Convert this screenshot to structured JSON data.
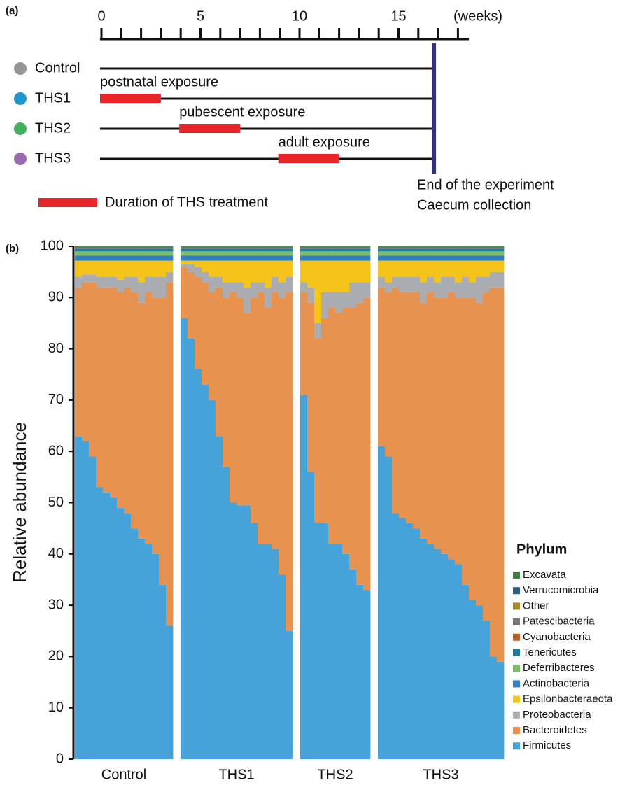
{
  "timeline": {
    "panel_label": "(a)",
    "unit": "(weeks)",
    "tick_labels": [
      "0",
      "5",
      "10",
      "15"
    ],
    "groups": [
      {
        "name": "Control",
        "color": "#939598"
      },
      {
        "name": "THS1",
        "color": "#1f95d0",
        "exposure": "postnatal exposure"
      },
      {
        "name": "THS2",
        "color": "#43b05c",
        "exposure": "pubescent exposure"
      },
      {
        "name": "THS3",
        "color": "#9b6bb0",
        "exposure": "adult exposure"
      }
    ],
    "legend": "Duration of THS treatment",
    "end_note": [
      "End of the experiment",
      "Caecum collection"
    ]
  },
  "chart_data": {
    "type": "stacked_bar",
    "panel_label": "(b)",
    "y_label": "Relative abundance",
    "legend_title": "Phylum",
    "groups": [
      "Control",
      "THS1",
      "THS2",
      "THS3"
    ],
    "ylim": [
      0,
      100
    ],
    "yticks": [
      0,
      10,
      20,
      30,
      40,
      50,
      60,
      70,
      80,
      90,
      100
    ],
    "series": [
      {
        "name": "Firmicutes",
        "color": "#45a3d9",
        "values": [
          [
            63,
            62,
            59,
            53,
            52,
            51,
            49,
            48,
            45,
            43,
            42,
            40,
            34,
            26
          ],
          [
            86,
            82,
            76,
            73,
            70,
            63,
            57,
            50,
            49.5,
            49.5,
            46,
            42,
            42,
            41,
            36,
            25
          ],
          [
            71,
            56,
            46,
            46,
            42,
            42,
            40,
            37,
            34,
            33
          ],
          [
            61,
            59,
            48,
            47,
            46,
            45,
            43,
            42,
            41,
            40,
            39,
            38,
            34,
            31,
            30,
            27,
            20,
            19
          ]
        ]
      },
      {
        "name": "Bacteroidetes",
        "color": "#e8924f",
        "values": [
          [
            29,
            31,
            34,
            39,
            40,
            41,
            42,
            44,
            46,
            46,
            49,
            50,
            56,
            67
          ],
          [
            10,
            13,
            18,
            20,
            21,
            29,
            33,
            41,
            40.5,
            37.5,
            44,
            49,
            46,
            50,
            54,
            66
          ],
          [
            20,
            33,
            36,
            40,
            46,
            45,
            48,
            51,
            55,
            57
          ],
          [
            31,
            32,
            44,
            44,
            45,
            46,
            46,
            49,
            49,
            50,
            52,
            52,
            56,
            59,
            59,
            64,
            72,
            73
          ]
        ]
      },
      {
        "name": "Proteobacteria",
        "color": "#a9acb0",
        "values": [
          [
            2,
            1.5,
            1.5,
            2,
            2,
            2,
            2.5,
            2,
            3,
            4,
            3,
            4,
            4,
            2
          ],
          [
            0.5,
            1.5,
            2,
            2,
            3,
            2,
            3,
            2,
            3,
            5,
            3,
            2,
            4,
            3,
            3,
            3
          ],
          [
            2,
            3,
            3,
            5,
            3,
            4,
            3,
            5,
            4,
            3
          ],
          [
            2,
            2,
            2,
            3,
            3,
            3,
            4,
            3,
            3,
            4,
            3,
            3,
            4,
            3,
            5,
            3,
            3,
            3
          ]
        ]
      },
      {
        "name": "Epsilonbacteraeota",
        "color": "#f5c419",
        "values": [
          [
            3.2,
            2.7,
            2.7,
            3.2,
            3.2,
            3.2,
            3.7,
            3.2,
            3.2,
            4.2,
            3.2,
            3.2,
            3.2,
            2.2
          ],
          [
            0.7,
            0.7,
            1.2,
            2.2,
            3.2,
            3.2,
            4.2,
            4.2,
            4.2,
            5.2,
            4.2,
            4.2,
            5.2,
            3.2,
            4.2,
            3.2
          ],
          [
            4.2,
            5.2,
            12.2,
            6.2,
            6.2,
            6.2,
            6.2,
            4.2,
            4.2,
            4.2
          ],
          [
            3.2,
            4.2,
            3.2,
            3.2,
            3.2,
            3.2,
            4.2,
            3.2,
            4.2,
            3.2,
            3.2,
            4.2,
            3.2,
            4.2,
            3.2,
            3.2,
            2.2,
            2.2
          ]
        ]
      },
      {
        "name": "Actinobacteria",
        "color": "#2f7fc1",
        "values": [
          [
            1,
            1,
            1,
            1,
            1,
            1,
            1,
            1,
            1,
            1,
            1,
            1,
            1,
            1
          ],
          [
            1,
            1,
            1,
            1,
            1,
            1,
            1,
            1,
            1,
            1,
            1,
            1,
            1,
            1,
            1,
            1
          ],
          [
            1,
            1,
            1,
            1,
            1,
            1,
            1,
            1,
            1,
            1
          ],
          [
            1,
            1,
            1,
            1,
            1,
            1,
            1,
            1,
            1,
            1,
            1,
            1,
            1,
            1,
            1,
            1,
            1,
            1
          ]
        ]
      },
      {
        "name": "Deferribacteres",
        "color": "#7dbd6b",
        "values": [
          [
            0.8,
            0.8,
            0.8,
            0.8,
            0.8,
            0.8,
            0.8,
            0.8,
            0.8,
            0.8,
            0.8,
            0.8,
            0.8,
            0.8
          ],
          [
            0.8,
            0.8,
            0.8,
            0.8,
            0.8,
            0.8,
            0.8,
            0.8,
            0.8,
            0.8,
            0.8,
            0.8,
            0.8,
            0.8,
            0.8,
            0.8
          ],
          [
            0.8,
            0.8,
            0.8,
            0.8,
            0.8,
            0.8,
            0.8,
            0.8,
            0.8,
            0.8
          ],
          [
            0.8,
            0.8,
            0.8,
            0.8,
            0.8,
            0.8,
            0.8,
            0.8,
            0.8,
            0.8,
            0.8,
            0.8,
            0.8,
            0.8,
            0.8,
            0.8,
            0.8,
            0.8
          ]
        ]
      },
      {
        "name": "Tenericutes",
        "color": "#1f7da0",
        "values": [
          [
            0.5,
            0.5,
            0.5,
            0.5,
            0.5,
            0.5,
            0.5,
            0.5,
            0.5,
            0.5,
            0.5,
            0.5,
            0.5,
            0.5
          ],
          [
            0.5,
            0.5,
            0.5,
            0.5,
            0.5,
            0.5,
            0.5,
            0.5,
            0.5,
            0.5,
            0.5,
            0.5,
            0.5,
            0.5,
            0.5,
            0.5
          ],
          [
            0.5,
            0.5,
            0.5,
            0.5,
            0.5,
            0.5,
            0.5,
            0.5,
            0.5,
            0.5
          ],
          [
            0.5,
            0.5,
            0.5,
            0.5,
            0.5,
            0.5,
            0.5,
            0.5,
            0.5,
            0.5,
            0.5,
            0.5,
            0.5,
            0.5,
            0.5,
            0.5,
            0.5,
            0.5
          ]
        ]
      },
      {
        "name": "Cyanobacteria",
        "color": "#b5602b",
        "values": [
          [
            0.1,
            0.1,
            0.1,
            0.1,
            0.1,
            0.1,
            0.1,
            0.1,
            0.1,
            0.1,
            0.1,
            0.1,
            0.1,
            0.1
          ],
          [
            0.1,
            0.1,
            0.1,
            0.1,
            0.1,
            0.1,
            0.1,
            0.1,
            0.1,
            0.1,
            0.1,
            0.1,
            0.1,
            0.1,
            0.1,
            0.1
          ],
          [
            0.1,
            0.1,
            0.1,
            0.1,
            0.1,
            0.1,
            0.1,
            0.1,
            0.1,
            0.1
          ],
          [
            0.1,
            0.1,
            0.1,
            0.1,
            0.1,
            0.1,
            0.1,
            0.1,
            0.1,
            0.1,
            0.1,
            0.1,
            0.1,
            0.1,
            0.1,
            0.1,
            0.1,
            0.1
          ]
        ]
      },
      {
        "name": "Patescibacteria",
        "color": "#777777",
        "values": [
          [
            0.1,
            0.1,
            0.1,
            0.1,
            0.1,
            0.1,
            0.1,
            0.1,
            0.1,
            0.1,
            0.1,
            0.1,
            0.1,
            0.1
          ],
          [
            0.1,
            0.1,
            0.1,
            0.1,
            0.1,
            0.1,
            0.1,
            0.1,
            0.1,
            0.1,
            0.1,
            0.1,
            0.1,
            0.1,
            0.1,
            0.1
          ],
          [
            0.1,
            0.1,
            0.1,
            0.1,
            0.1,
            0.1,
            0.1,
            0.1,
            0.1,
            0.1
          ],
          [
            0.1,
            0.1,
            0.1,
            0.1,
            0.1,
            0.1,
            0.1,
            0.1,
            0.1,
            0.1,
            0.1,
            0.1,
            0.1,
            0.1,
            0.1,
            0.1,
            0.1,
            0.1
          ]
        ]
      },
      {
        "name": "Other",
        "color": "#a8892a",
        "values": [
          [
            0.1,
            0.1,
            0.1,
            0.1,
            0.1,
            0.1,
            0.1,
            0.1,
            0.1,
            0.1,
            0.1,
            0.1,
            0.1,
            0.1
          ],
          [
            0.1,
            0.1,
            0.1,
            0.1,
            0.1,
            0.1,
            0.1,
            0.1,
            0.1,
            0.1,
            0.1,
            0.1,
            0.1,
            0.1,
            0.1,
            0.1
          ],
          [
            0.1,
            0.1,
            0.1,
            0.1,
            0.1,
            0.1,
            0.1,
            0.1,
            0.1,
            0.1
          ],
          [
            0.1,
            0.1,
            0.1,
            0.1,
            0.1,
            0.1,
            0.1,
            0.1,
            0.1,
            0.1,
            0.1,
            0.1,
            0.1,
            0.1,
            0.1,
            0.1,
            0.1,
            0.1
          ]
        ]
      },
      {
        "name": "Verrucomicrobia",
        "color": "#2a5e7e",
        "values": [
          [
            0.1,
            0.1,
            0.1,
            0.1,
            0.1,
            0.1,
            0.1,
            0.1,
            0.1,
            0.1,
            0.1,
            0.1,
            0.1,
            0.1
          ],
          [
            0.1,
            0.1,
            0.1,
            0.1,
            0.1,
            0.1,
            0.1,
            0.1,
            0.1,
            0.1,
            0.1,
            0.1,
            0.1,
            0.1,
            0.1,
            0.1
          ],
          [
            0.1,
            0.1,
            0.1,
            0.1,
            0.1,
            0.1,
            0.1,
            0.1,
            0.1,
            0.1
          ],
          [
            0.1,
            0.1,
            0.1,
            0.1,
            0.1,
            0.1,
            0.1,
            0.1,
            0.1,
            0.1,
            0.1,
            0.1,
            0.1,
            0.1,
            0.1,
            0.1,
            0.1,
            0.1
          ]
        ]
      },
      {
        "name": "Excavata",
        "color": "#3d7d3d",
        "values": [
          [
            0.1,
            0.1,
            0.1,
            0.1,
            0.1,
            0.1,
            0.1,
            0.1,
            0.1,
            0.1,
            0.1,
            0.1,
            0.1,
            0.1
          ],
          [
            0.1,
            0.1,
            0.1,
            0.1,
            0.1,
            0.1,
            0.1,
            0.1,
            0.1,
            0.1,
            0.1,
            0.1,
            0.1,
            0.1,
            0.1,
            0.1
          ],
          [
            0.1,
            0.1,
            0.1,
            0.1,
            0.1,
            0.1,
            0.1,
            0.1,
            0.1,
            0.1
          ],
          [
            0.1,
            0.1,
            0.1,
            0.1,
            0.1,
            0.1,
            0.1,
            0.1,
            0.1,
            0.1,
            0.1,
            0.1,
            0.1,
            0.1,
            0.1,
            0.1,
            0.1,
            0.1
          ]
        ]
      }
    ]
  }
}
